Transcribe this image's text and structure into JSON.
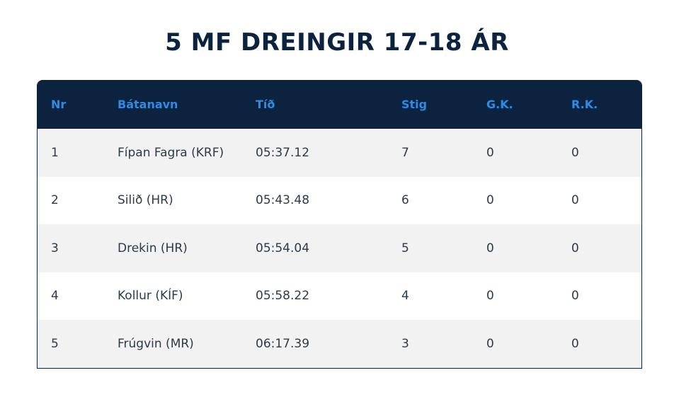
{
  "title": "5 MF DREINGIR 17-18 ÁR",
  "columns": [
    "Nr",
    "Bátanavn",
    "Tíð",
    "Stig",
    "G.K.",
    "R.K."
  ],
  "rows": [
    [
      "1",
      "Fípan Fagra (KRF)",
      "05:37.12",
      "7",
      "0",
      "0"
    ],
    [
      "2",
      "Silið (HR)",
      "05:43.48",
      "6",
      "0",
      "0"
    ],
    [
      "3",
      "Drekin (HR)",
      "05:54.04",
      "5",
      "0",
      "0"
    ],
    [
      "4",
      "Kollur (KÍF)",
      "05:58.22",
      "4",
      "0",
      "0"
    ],
    [
      "5",
      "Frúgvin (MR)",
      "06:17.39",
      "3",
      "0",
      "0"
    ]
  ],
  "colors": {
    "header_bg": "#0c2340",
    "header_text": "#2e8be6",
    "title": "#0c2340",
    "stripe": "#f2f2f2"
  }
}
